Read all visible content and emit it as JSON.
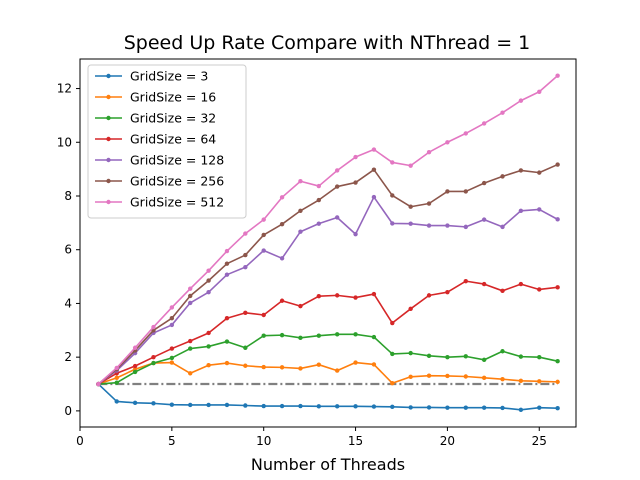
{
  "chart_data": {
    "type": "line",
    "title": "Speed Up Rate Compare with NThread = 1",
    "xlabel": "Number of Threads",
    "ylabel": "",
    "xlim": [
      0,
      27
    ],
    "ylim": [
      -0.6,
      13.1
    ],
    "xticks": [
      0,
      5,
      10,
      15,
      20,
      25
    ],
    "yticks": [
      0,
      2,
      4,
      6,
      8,
      10,
      12
    ],
    "legend_position": "top-left",
    "grid": false,
    "x": [
      1,
      2,
      3,
      4,
      5,
      6,
      7,
      8,
      9,
      10,
      11,
      12,
      13,
      14,
      15,
      16,
      17,
      18,
      19,
      20,
      21,
      22,
      23,
      24,
      25,
      26
    ],
    "series": [
      {
        "name": "GridSize = 3",
        "color": "#1f77b4",
        "values": [
          1,
          0.35,
          0.3,
          0.28,
          0.23,
          0.22,
          0.22,
          0.22,
          0.2,
          0.18,
          0.18,
          0.18,
          0.17,
          0.17,
          0.17,
          0.16,
          0.15,
          0.13,
          0.13,
          0.12,
          0.12,
          0.12,
          0.11,
          0.04,
          0.12,
          0.1
        ]
      },
      {
        "name": "GridSize = 16",
        "color": "#ff7f0e",
        "values": [
          1,
          1.23,
          1.55,
          1.78,
          1.8,
          1.4,
          1.7,
          1.78,
          1.68,
          1.63,
          1.62,
          1.58,
          1.72,
          1.5,
          1.8,
          1.73,
          1.03,
          1.27,
          1.31,
          1.3,
          1.28,
          1.23,
          1.18,
          1.12,
          1.1,
          1.08
        ]
      },
      {
        "name": "GridSize = 32",
        "color": "#2ca02c",
        "values": [
          1,
          1.05,
          1.45,
          1.78,
          1.97,
          2.32,
          2.4,
          2.58,
          2.35,
          2.8,
          2.82,
          2.72,
          2.8,
          2.85,
          2.85,
          2.75,
          2.12,
          2.15,
          2.05,
          2.0,
          2.03,
          1.9,
          2.22,
          2.02,
          2.0,
          1.85
        ]
      },
      {
        "name": "GridSize = 64",
        "color": "#d62728",
        "values": [
          1,
          1.4,
          1.67,
          2.0,
          2.32,
          2.6,
          2.9,
          3.45,
          3.65,
          3.57,
          4.1,
          3.9,
          4.27,
          4.3,
          4.22,
          4.35,
          3.27,
          3.8,
          4.3,
          4.42,
          4.83,
          4.72,
          4.47,
          4.72,
          4.52,
          4.6
        ]
      },
      {
        "name": "GridSize = 128",
        "color": "#9467bd",
        "values": [
          1,
          1.5,
          2.15,
          2.9,
          3.2,
          4.02,
          4.42,
          5.07,
          5.35,
          5.97,
          5.68,
          6.67,
          6.97,
          7.2,
          6.58,
          7.96,
          6.98,
          6.97,
          6.9,
          6.9,
          6.85,
          7.12,
          6.85,
          7.45,
          7.5,
          7.13
        ]
      },
      {
        "name": "GridSize = 256",
        "color": "#8c564b",
        "values": [
          1,
          1.55,
          2.25,
          3.0,
          3.45,
          4.28,
          4.85,
          5.48,
          5.8,
          6.55,
          6.95,
          7.45,
          7.85,
          8.35,
          8.5,
          8.98,
          8.02,
          7.6,
          7.72,
          8.17,
          8.17,
          8.48,
          8.73,
          8.95,
          8.87,
          9.17
        ]
      },
      {
        "name": "GridSize = 512",
        "color": "#e377c2",
        "values": [
          1,
          1.6,
          2.35,
          3.12,
          3.85,
          4.55,
          5.22,
          5.95,
          6.6,
          7.12,
          7.95,
          8.55,
          8.37,
          8.95,
          9.45,
          9.73,
          9.25,
          9.13,
          9.63,
          10.0,
          10.33,
          10.7,
          11.1,
          11.55,
          11.88,
          12.48
        ]
      }
    ],
    "reference_line": {
      "color": "#808080",
      "style": "dash-dot",
      "x": [
        1,
        26
      ],
      "values": [
        1,
        1
      ]
    }
  }
}
